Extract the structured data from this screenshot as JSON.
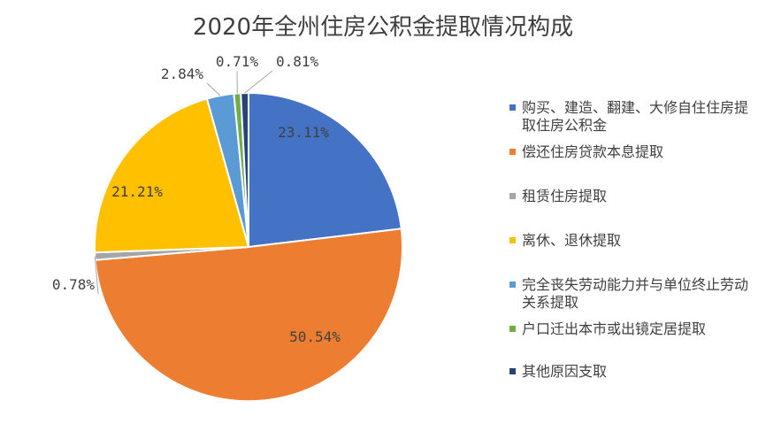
{
  "chart_data": {
    "type": "pie",
    "title": "2020年全州住房公积金提取情况构成",
    "legend_position": "right",
    "slices": [
      {
        "name": "购买、建造、翻建、大修自住住房提取住房公积金",
        "value": 23.11,
        "label": "23.11%",
        "color": "#4472C4"
      },
      {
        "name": "偿还住房贷款本息提取",
        "value": 50.54,
        "label": "50.54%",
        "color": "#ED7D31"
      },
      {
        "name": "租赁住房提取",
        "value": 0.78,
        "label": "0.78%",
        "color": "#A5A5A5"
      },
      {
        "name": "离休、退休提取",
        "value": 21.21,
        "label": "21.21%",
        "color": "#FFC000"
      },
      {
        "name": "完全丧失劳动能力并与单位终止劳动关系提取",
        "value": 2.84,
        "label": "2.84%",
        "color": "#5B9BD5"
      },
      {
        "name": "户口迁出本市或出镜定居提取",
        "value": 0.71,
        "label": "0.71%",
        "color": "#70AD47"
      },
      {
        "name": "其他原因支取",
        "value": 0.81,
        "label": "0.81%",
        "color": "#264478"
      }
    ]
  }
}
